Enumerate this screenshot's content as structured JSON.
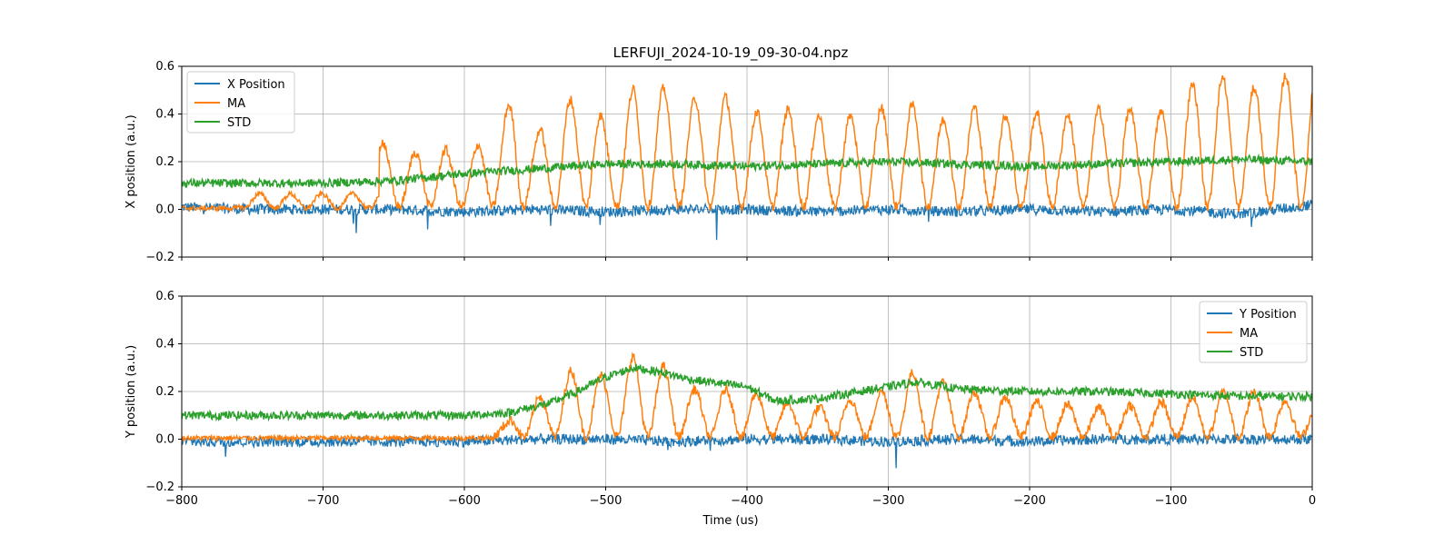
{
  "colors": {
    "position": "#1f77b4",
    "ma": "#ff7f0e",
    "std": "#2ca02c",
    "grid": "#b0b0b0"
  },
  "chart_data": {
    "type": "line",
    "title": "LERFUJI_2024-10-19_09-30-04.npz",
    "xlabel": "Time (us)",
    "xlim": [
      -800,
      0
    ],
    "x_ticks": [
      -800,
      -700,
      -600,
      -500,
      -400,
      -300,
      -200,
      -100,
      0
    ],
    "x_tick_labels": [
      "−800",
      "−700",
      "−600",
      "−500",
      "−400",
      "−300",
      "−200",
      "−100",
      "0"
    ],
    "grid": true,
    "subplots": [
      {
        "ylabel": "X position (a.u.)",
        "ylim": [
          -0.2,
          0.6
        ],
        "y_ticks": [
          -0.2,
          0.0,
          0.2,
          0.4,
          0.6
        ],
        "y_tick_labels": [
          "−0.2",
          "0.0",
          "0.2",
          "0.4",
          "0.6"
        ],
        "legend_position": "top-left",
        "series": [
          {
            "name": "X Position",
            "color_key": "position",
            "x": [
              -800,
              -750,
              -700,
              -650,
              -600,
              -550,
              -500,
              -450,
              -400,
              -350,
              -300,
              -250,
              -200,
              -150,
              -100,
              -50,
              0
            ],
            "y": [
              0.01,
              0.0,
              0.0,
              0.0,
              -0.01,
              0.0,
              -0.01,
              0.0,
              0.0,
              -0.01,
              0.0,
              -0.01,
              0.0,
              -0.01,
              0.0,
              -0.02,
              0.02
            ]
          },
          {
            "name": "MA",
            "color_key": "ma",
            "x": [
              -800,
              -750,
              -700,
              -660,
              -650,
              -620,
              -600,
              -580,
              -565,
              -550,
              -530,
              -510,
              -500,
              -480,
              -460,
              -440,
              -420,
              -400,
              -380,
              -360,
              -340,
              -320,
              -300,
              -280,
              -260,
              -240,
              -220,
              -200,
              -180,
              -160,
              -140,
              -120,
              -100,
              -80,
              -70,
              -60,
              -40,
              -20,
              0
            ],
            "y": [
              0.0,
              0.02,
              0.1,
              0.3,
              0.2,
              0.26,
              0.2,
              0.33,
              0.46,
              0.3,
              0.45,
              0.45,
              0.35,
              0.5,
              0.5,
              0.45,
              0.48,
              0.4,
              0.4,
              0.42,
              0.35,
              0.4,
              0.42,
              0.43,
              0.36,
              0.42,
              0.38,
              0.4,
              0.38,
              0.4,
              0.42,
              0.4,
              0.4,
              0.55,
              0.6,
              0.52,
              0.5,
              0.55,
              0.58
            ]
          },
          {
            "name": "STD",
            "color_key": "std",
            "x": [
              -800,
              -750,
              -700,
              -650,
              -600,
              -550,
              -500,
              -450,
              -400,
              -350,
              -300,
              -250,
              -200,
              -150,
              -100,
              -50,
              0
            ],
            "y": [
              0.11,
              0.11,
              0.11,
              0.12,
              0.15,
              0.17,
              0.19,
              0.19,
              0.18,
              0.19,
              0.2,
              0.19,
              0.18,
              0.19,
              0.2,
              0.21,
              0.2
            ]
          }
        ]
      },
      {
        "ylabel": "Y position (a.u.)",
        "ylim": [
          -0.2,
          0.6
        ],
        "y_ticks": [
          -0.2,
          0.0,
          0.2,
          0.4,
          0.6
        ],
        "y_tick_labels": [
          "−0.2",
          "0.0",
          "0.2",
          "0.4",
          "0.6"
        ],
        "legend_position": "top-right",
        "series": [
          {
            "name": "Y Position",
            "color_key": "position",
            "x": [
              -800,
              -750,
              -700,
              -650,
              -600,
              -550,
              -500,
              -450,
              -400,
              -350,
              -300,
              -250,
              -200,
              -150,
              -100,
              -50,
              0
            ],
            "y": [
              -0.01,
              -0.01,
              -0.01,
              -0.01,
              -0.01,
              0.0,
              0.0,
              -0.01,
              0.0,
              0.0,
              -0.01,
              0.0,
              -0.01,
              0.0,
              0.0,
              0.0,
              0.0
            ]
          },
          {
            "name": "MA",
            "color_key": "ma",
            "x": [
              -800,
              -700,
              -650,
              -600,
              -570,
              -540,
              -520,
              -500,
              -480,
              -460,
              -440,
              -400,
              -380,
              -350,
              -300,
              -280,
              -250,
              -200,
              -150,
              -100,
              -50,
              0
            ],
            "y": [
              0.01,
              0.01,
              0.02,
              0.02,
              0.06,
              0.2,
              0.3,
              0.25,
              0.34,
              0.3,
              0.2,
              0.2,
              0.15,
              0.12,
              0.2,
              0.28,
              0.2,
              0.15,
              0.12,
              0.15,
              0.2,
              0.12
            ]
          },
          {
            "name": "STD",
            "color_key": "std",
            "x": [
              -800,
              -700,
              -650,
              -600,
              -570,
              -540,
              -520,
              -500,
              -480,
              -460,
              -440,
              -400,
              -380,
              -350,
              -300,
              -280,
              -250,
              -200,
              -150,
              -100,
              -50,
              0
            ],
            "y": [
              0.1,
              0.1,
              0.1,
              0.1,
              0.11,
              0.15,
              0.2,
              0.26,
              0.3,
              0.28,
              0.25,
              0.22,
              0.16,
              0.17,
              0.22,
              0.24,
              0.21,
              0.2,
              0.2,
              0.19,
              0.18,
              0.18
            ]
          }
        ]
      }
    ]
  }
}
